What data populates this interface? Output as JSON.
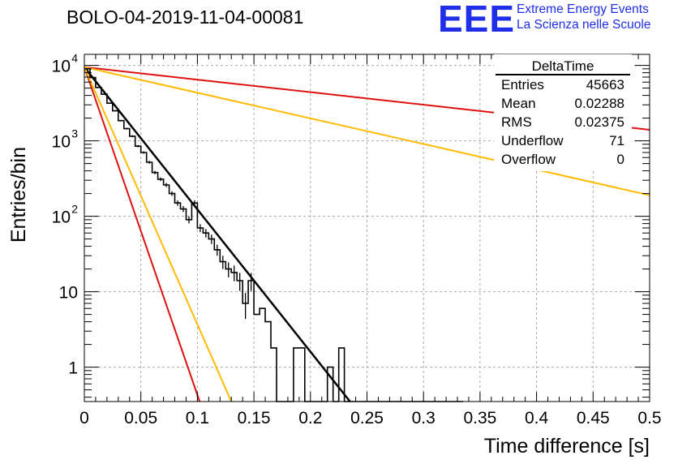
{
  "title": "BOLO-04-2019-11-04-00081",
  "logo": {
    "mark": "EEE",
    "line1": "Extreme Energy Events",
    "line2": "La Scienza nelle Scuole",
    "color": "#1f2ee8"
  },
  "stats_box": {
    "name": "DeltaTime",
    "rows": [
      {
        "label": "Entries",
        "value": "45663"
      },
      {
        "label": "Mean",
        "value": "0.02288"
      },
      {
        "label": "RMS",
        "value": "0.02375"
      },
      {
        "label": "Underflow",
        "value": "71"
      },
      {
        "label": "Overflow",
        "value": "0"
      }
    ]
  },
  "chart_data": {
    "type": "histogram",
    "xlabel": "Time difference [s]",
    "ylabel": "Entries/bin",
    "xlim": [
      0,
      0.5
    ],
    "ylim": [
      0.35,
      14000
    ],
    "y_scale": "log",
    "grid": true,
    "x_ticks": [
      "0",
      "0.05",
      "0.1",
      "0.15",
      "0.2",
      "0.25",
      "0.3",
      "0.35",
      "0.4",
      "0.45",
      "0.5"
    ],
    "y_ticks": [
      {
        "value": 1,
        "base": "1",
        "exp": ""
      },
      {
        "value": 10,
        "base": "10",
        "exp": ""
      },
      {
        "value": 100,
        "base": "10",
        "exp": "2"
      },
      {
        "value": 1000,
        "base": "10",
        "exp": "3"
      },
      {
        "value": 10000,
        "base": "10",
        "exp": "4"
      }
    ],
    "histogram": {
      "bin_width": 0.005,
      "color": "#000000",
      "counts": [
        9000,
        6900,
        5100,
        4150,
        3150,
        2500,
        1850,
        1450,
        1150,
        850,
        700,
        520,
        380,
        310,
        260,
        200,
        150,
        125,
        90,
        150,
        70,
        60,
        50,
        36,
        25,
        20,
        18,
        14,
        7,
        14,
        5,
        6,
        4,
        1.8,
        0,
        0,
        0,
        1.8,
        1.8,
        0,
        0,
        0,
        0,
        1,
        0,
        1.8,
        0,
        0,
        0,
        0,
        0,
        0,
        0,
        0,
        0,
        0,
        0,
        0,
        0,
        0,
        0,
        0,
        0,
        0,
        0,
        0,
        0
      ]
    },
    "series": [
      {
        "color": "#000000",
        "x": [
          0,
          0.235
        ],
        "y": [
          9500,
          0.35
        ]
      },
      {
        "color": "#dd1111",
        "x": [
          0,
          0.102
        ],
        "y": [
          9500,
          0.35
        ]
      },
      {
        "color": "#ffbb00",
        "x": [
          0,
          0.13
        ],
        "y": [
          9500,
          0.35
        ]
      },
      {
        "color": "#dd1111",
        "x": [
          0,
          0.5
        ],
        "y": [
          9500,
          1400
        ]
      },
      {
        "color": "#ffbb00",
        "x": [
          0,
          0.5
        ],
        "y": [
          9500,
          190
        ]
      }
    ]
  }
}
